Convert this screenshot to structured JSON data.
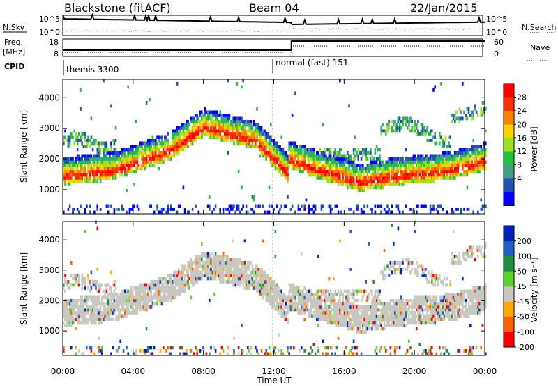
{
  "header": {
    "title": "Blackstone (fitACF)",
    "beam": "Beam 04",
    "date": "22/Jan/2015"
  },
  "top_panels": {
    "nsky_label": "N.Sky",
    "nsky_ticks": [
      "10^5",
      "10^0"
    ],
    "nsearch_label": "N.Search",
    "nsearch_ticks": [
      "10^5",
      "10^0"
    ],
    "freq_label": "Freq.",
    "freq_unit": "[MHz]",
    "freq_ticks": [
      "18",
      "8"
    ],
    "nave_label": "Nave",
    "nave_ticks": [
      "60",
      "0"
    ],
    "cpid_label": "CPID",
    "cpid_segments": [
      "themis 3300",
      "normal (fast) 151"
    ]
  },
  "x_axis": {
    "label": "Time UT",
    "ticks": [
      "00:00",
      "04:00",
      "08:00",
      "12:00",
      "16:00",
      "20:00",
      "00:00"
    ]
  },
  "colors": {
    "power": [
      "#0000ff",
      "#2050b0",
      "#40a080",
      "#20c040",
      "#a0e020",
      "#ffd000",
      "#ff8000",
      "#ff3000",
      "#ff0000"
    ],
    "velocity": [
      "#ff0000",
      "#ff6000",
      "#ffaa00",
      "#c8c8c0",
      "#60d030",
      "#209040",
      "#2060c0",
      "#0020c0"
    ]
  },
  "chart_data": [
    {
      "type": "heatmap",
      "name": "power-panel",
      "ylabel": "Slant Range [km]",
      "y_ticks": [
        "1000",
        "2000",
        "3000",
        "4000"
      ],
      "y_values": [
        1000,
        2000,
        3000,
        4000
      ],
      "ylim": [
        200,
        4600
      ],
      "xlim": [
        0,
        24
      ],
      "colorbar_label": "Power [dB]",
      "colorbar_ticks": [
        "28",
        "24",
        "20",
        "16",
        "12",
        "8",
        "4"
      ]
    },
    {
      "type": "heatmap",
      "name": "velocity-panel",
      "ylabel": "Slant Range [km]",
      "y_ticks": [
        "1000",
        "2000",
        "3000",
        "4000"
      ],
      "y_values": [
        1000,
        2000,
        3000,
        4000
      ],
      "ylim": [
        200,
        4600
      ],
      "xlim": [
        0,
        24
      ],
      "colorbar_label": "Velocity [m s⁻¹]",
      "colorbar_ticks": [
        "200",
        "100",
        "50",
        "15",
        "-15",
        "-50",
        "-100",
        "-200"
      ]
    }
  ]
}
